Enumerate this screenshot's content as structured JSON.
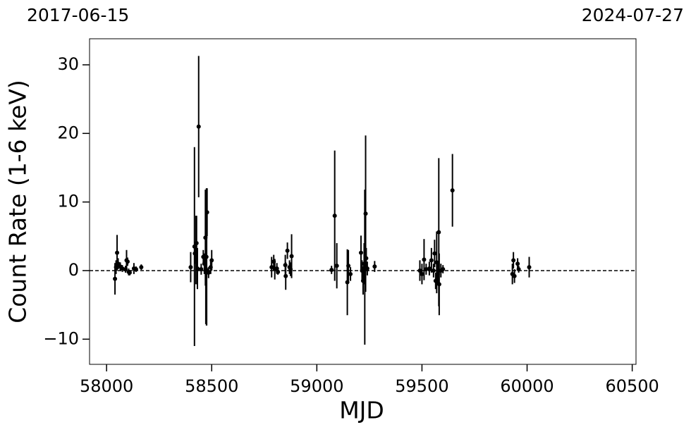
{
  "chart_data": {
    "type": "errorbar",
    "annotations": [
      "2017-06-15",
      "2024-07-27"
    ],
    "xlabel": "MJD",
    "ylabel": "Count Rate (1-6 keV)",
    "xlim": [
      57919,
      60518
    ],
    "ylim": [
      -13.67,
      33.8
    ],
    "xticks": [
      58000,
      58500,
      59000,
      59500,
      60000,
      60500
    ],
    "yticks": [
      {
        "value": -10,
        "label": "−10"
      },
      0,
      10,
      20,
      30
    ],
    "hline": 0,
    "series": [
      {
        "color": "#000000",
        "x": [
          58040,
          58045,
          58050,
          58055,
          58065,
          58075,
          58090,
          58095,
          58100,
          58105,
          58110,
          58130,
          58140,
          58165,
          58400,
          58418,
          58420,
          58425,
          58428,
          58432,
          58438,
          58450,
          58460,
          58465,
          58470,
          58472,
          58475,
          58476,
          58478,
          58485,
          58495,
          58500,
          58785,
          58795,
          58800,
          58810,
          58815,
          58850,
          58852,
          58860,
          58870,
          58875,
          58880,
          59070,
          59085,
          59095,
          59145,
          59150,
          59160,
          59210,
          59215,
          59220,
          59225,
          59228,
          59232,
          59235,
          59240,
          59275,
          59490,
          59500,
          59510,
          59520,
          59535,
          59545,
          59555,
          59560,
          59565,
          59570,
          59575,
          59580,
          59582,
          59590,
          59600,
          59645,
          59930,
          59935,
          59940,
          59955,
          59960,
          60010
        ],
        "values": [
          -1.2,
          0.5,
          2.6,
          1.0,
          0.6,
          0.3,
          0.2,
          1.5,
          1.3,
          -0.2,
          -0.3,
          0.3,
          0.2,
          0.5,
          0.5,
          3.5,
          2.5,
          3.0,
          4.0,
          0.3,
          21.0,
          0.2,
          2.0,
          1.0,
          4.8,
          0.2,
          2.0,
          0.0,
          8.5,
          -0.3,
          0.5,
          1.5,
          0.5,
          1.3,
          0.2,
          0.3,
          -0.2,
          0.8,
          -0.8,
          2.9,
          0.5,
          0.2,
          2.1,
          0.1,
          8.0,
          0.7,
          -1.7,
          0.7,
          -0.5,
          2.6,
          0.0,
          -1.5,
          1.0,
          0.5,
          8.3,
          1.8,
          0.3,
          0.6,
          0.0,
          -0.5,
          1.6,
          0.2,
          0.3,
          1.5,
          0.0,
          2.5,
          -1.5,
          1.2,
          -0.5,
          5.6,
          -2.0,
          0.0,
          0.2,
          11.7,
          -0.5,
          1.5,
          -0.8,
          1.0,
          0.2,
          0.5
        ],
        "errors": [
          2.3,
          1.0,
          2.6,
          0.8,
          0.6,
          0.5,
          0.5,
          1.5,
          0.6,
          0.5,
          0.4,
          0.8,
          0.4,
          0.4,
          2.2,
          14.5,
          1.5,
          5.0,
          4.0,
          3.0,
          10.3,
          0.8,
          1.0,
          1.5,
          7.0,
          8.0,
          10.0,
          8.0,
          3.5,
          0.8,
          1.0,
          1.5,
          1.5,
          1.0,
          1.5,
          0.8,
          0.4,
          1.5,
          2.0,
          1.2,
          1.0,
          1.0,
          3.2,
          0.6,
          9.5,
          3.3,
          4.8,
          2.3,
          1.0,
          2.5,
          1.5,
          2.0,
          3.0,
          11.3,
          11.4,
          1.5,
          1.0,
          0.8,
          1.5,
          1.5,
          3.0,
          0.8,
          1.0,
          1.8,
          1.0,
          2.0,
          1.2,
          4.5,
          1.5,
          10.8,
          4.5,
          1.0,
          0.6,
          5.3,
          1.5,
          1.2,
          1.0,
          0.8,
          0.5,
          1.5
        ]
      }
    ]
  }
}
